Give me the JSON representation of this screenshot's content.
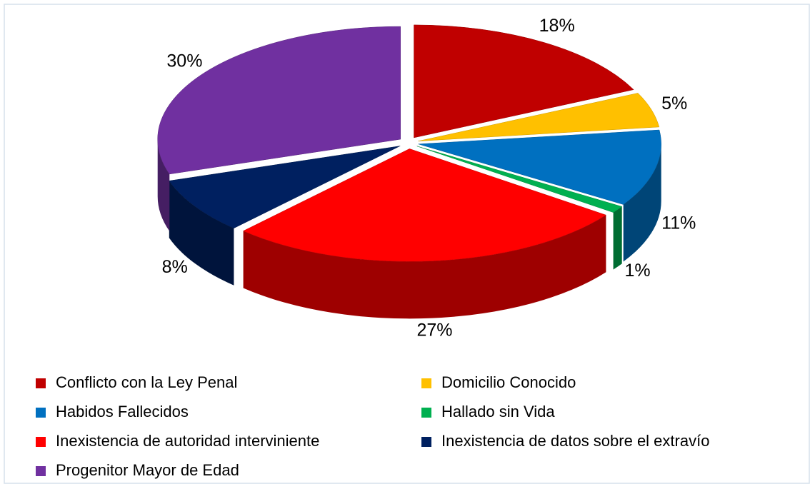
{
  "chart_data": {
    "type": "pie",
    "categories": [
      "Conflicto con la Ley Penal",
      "Domicilio Conocido",
      "Habidos Fallecidos",
      "Hallado sin Vida",
      "Inexistencia de autoridad interviniente",
      "Inexistencia de datos sobre el extravío",
      "Progenitor Mayor de Edad"
    ],
    "values": [
      18,
      5,
      11,
      1,
      27,
      8,
      30
    ],
    "value_labels": [
      "18%",
      "5%",
      "11%",
      "1%",
      "27%",
      "8%",
      "30%"
    ],
    "colors": [
      "#c00000",
      "#ffc000",
      "#0070c0",
      "#00b050",
      "#ff0000",
      "#002060",
      "#7030a0"
    ],
    "legend": "bottom"
  }
}
